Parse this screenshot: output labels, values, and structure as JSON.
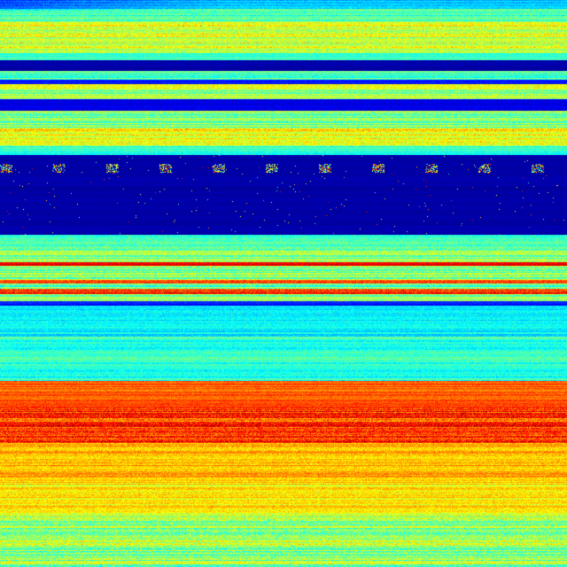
{
  "chart_data": {
    "type": "heatmap",
    "colormap": "jet",
    "colormap_stops": [
      "#00007f",
      "#0000ff",
      "#00ffff",
      "#7fff7f",
      "#ffff00",
      "#ff0000",
      "#7f0000"
    ],
    "value_range": [
      0,
      1
    ],
    "grid": false,
    "legend": "none"
  }
}
